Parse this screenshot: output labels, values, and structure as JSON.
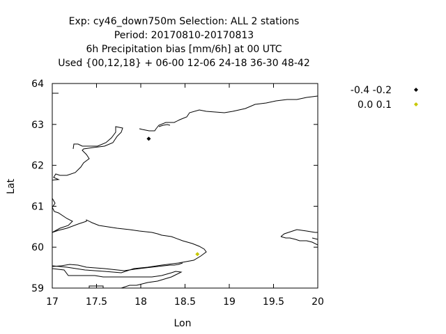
{
  "chart_data": {
    "type": "scatter",
    "title_lines": [
      "Exp: cy46_down750m   Selection: ALL       2 stations",
      "Period: 20170810-20170813",
      "6h Precipitation bias [mm/6h] at  00 UTC",
      "Used {00,12,18} + 06-00 12-06 24-18 36-30 48-42"
    ],
    "xlabel": "Lon",
    "ylabel": "Lat",
    "xlim": [
      17,
      20
    ],
    "ylim": [
      59,
      64
    ],
    "xticks": [
      17,
      17.5,
      18,
      18.5,
      19,
      19.5,
      20
    ],
    "xtick_labels": [
      "17",
      "17.5",
      "18",
      "18.5",
      "19",
      "19.5",
      "20"
    ],
    "yticks": [
      59,
      60,
      61,
      62,
      63,
      64
    ],
    "ytick_labels": [
      "59",
      "60",
      "61",
      "62",
      "63",
      "64"
    ],
    "grid": false,
    "legend_position": "outside-top-right",
    "series": [
      {
        "name": "-0.4 -0.2",
        "color": "#000000",
        "marker": "diamond",
        "points": [
          [
            18.09,
            62.65
          ]
        ]
      },
      {
        "name": "0.0 0.1",
        "color": "#c8c800",
        "marker": "diamond",
        "points": [
          [
            18.64,
            59.83
          ]
        ]
      }
    ],
    "coastline_color": "#000000"
  }
}
